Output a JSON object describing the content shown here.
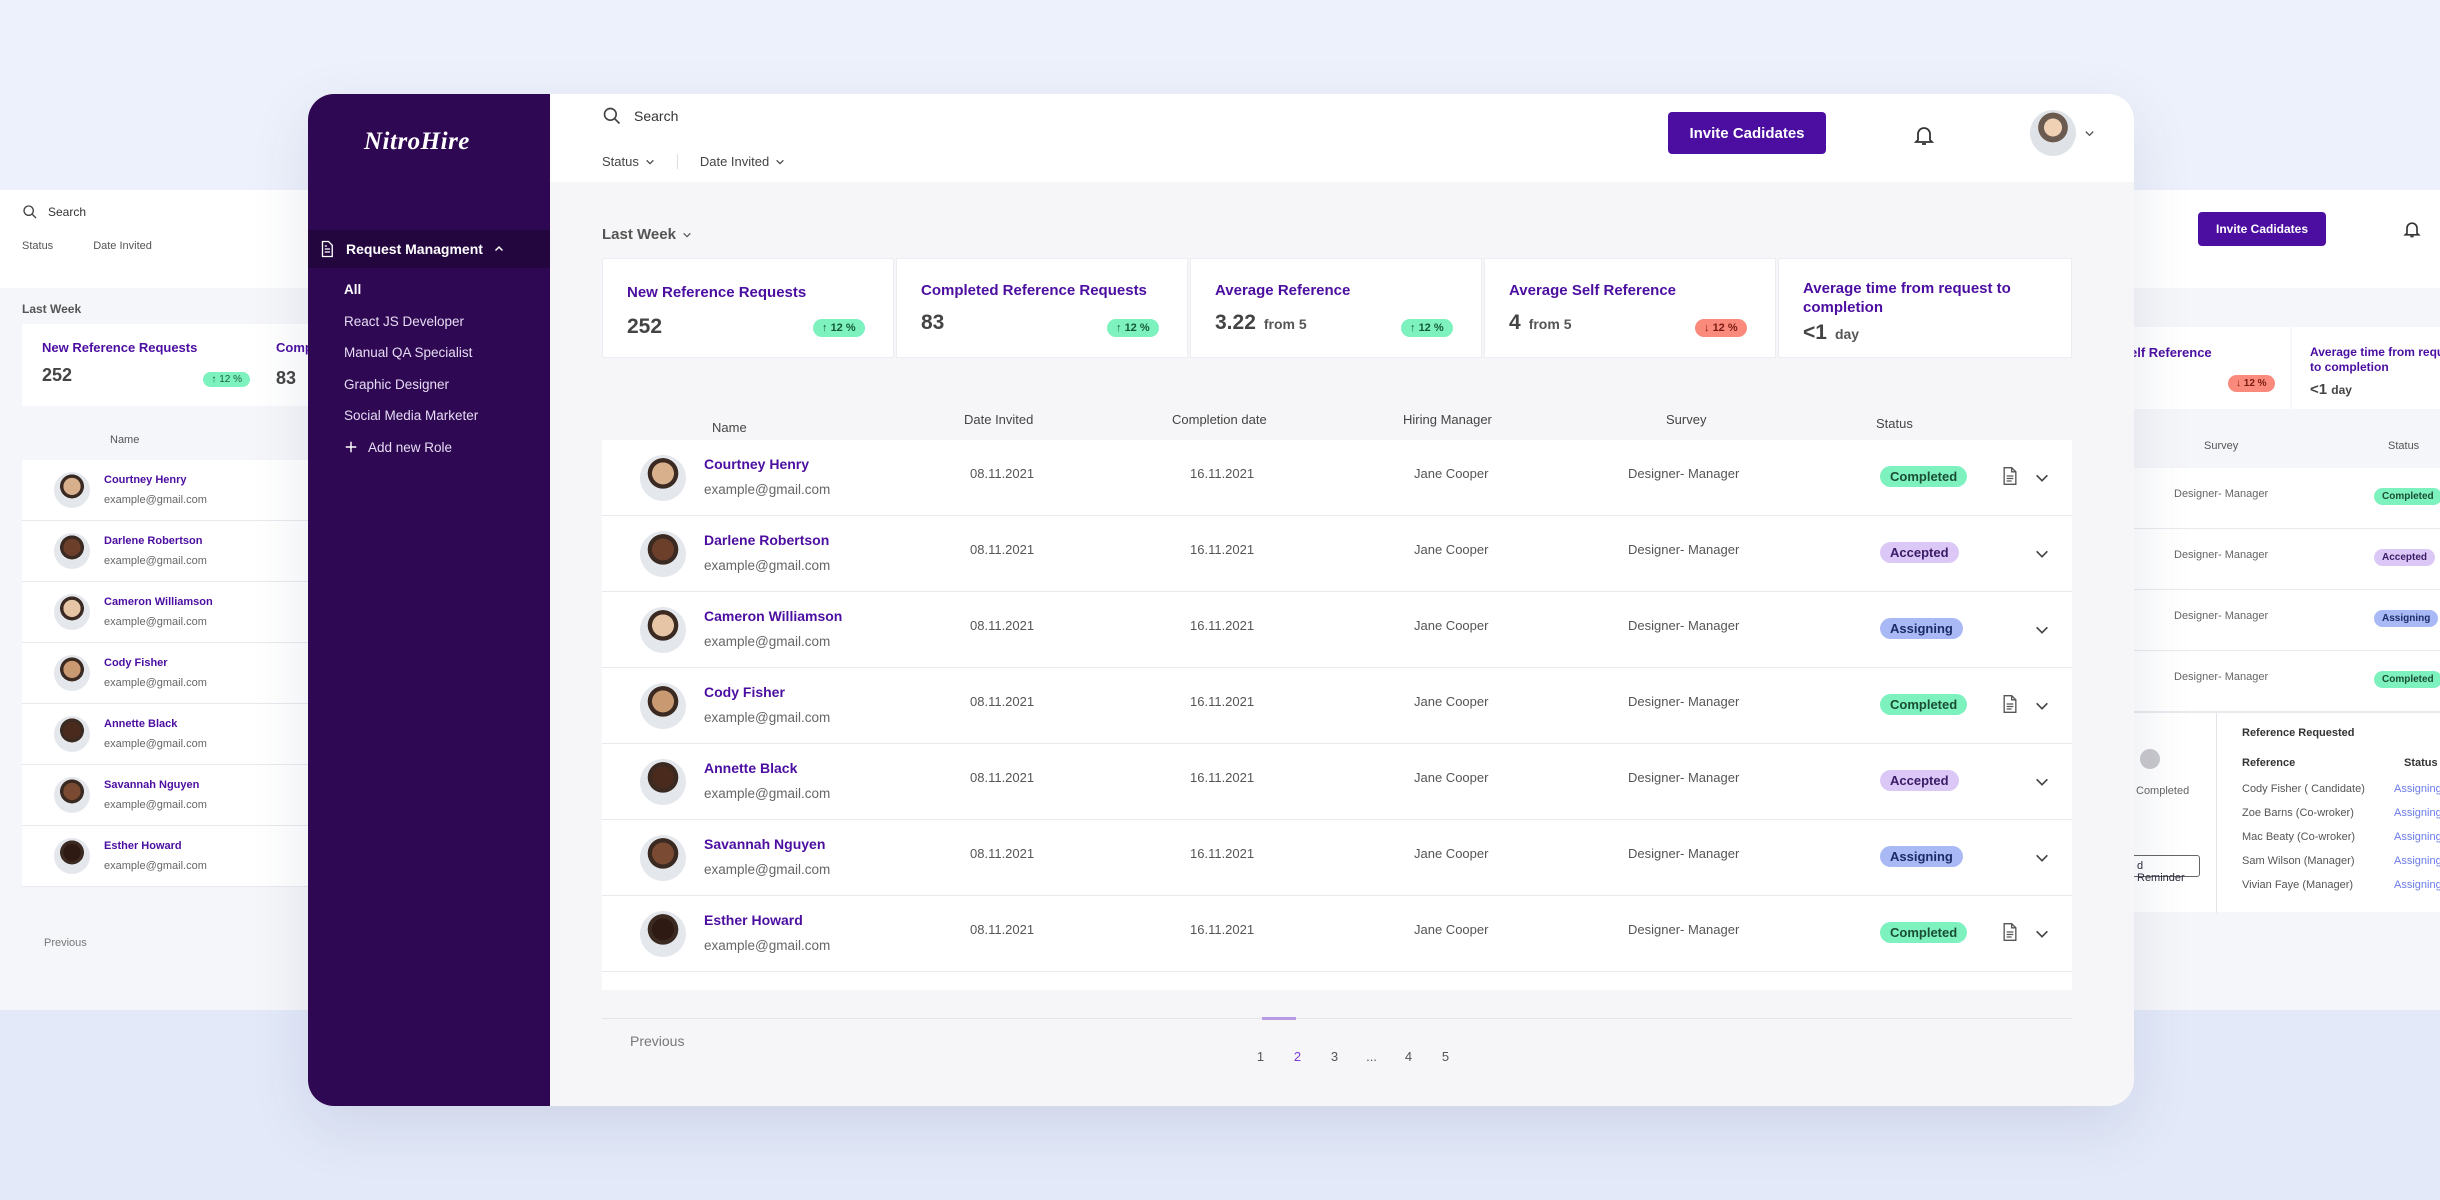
{
  "app": {
    "brand": "NitroHire"
  },
  "sidebar": {
    "section_label": "Request Managment",
    "items": [
      {
        "label": "All"
      },
      {
        "label": "React JS Developer"
      },
      {
        "label": "Manual QA Specialist"
      },
      {
        "label": "Graphic Designer"
      },
      {
        "label": "Social Media Marketer"
      }
    ],
    "add_label": "Add new Role"
  },
  "topbar": {
    "search_placeholder": "Search",
    "filters": [
      "Status",
      "Date Invited"
    ],
    "invite_label": "Invite Cadidates"
  },
  "period_label": "Last Week",
  "stats": [
    {
      "title": "New Reference Requests",
      "value": "252",
      "suffix": "",
      "delta": "12 %",
      "trend": "up"
    },
    {
      "title": "Completed Reference Requests",
      "value": "83",
      "suffix": "",
      "delta": "12 %",
      "trend": "up"
    },
    {
      "title": "Average Reference",
      "value": "3.22",
      "suffix": "from 5",
      "delta": "12 %",
      "trend": "up"
    },
    {
      "title": "Average Self Reference",
      "value": "4",
      "suffix": "from 5",
      "delta": "12 %",
      "trend": "down"
    },
    {
      "title": "Average time from request to completion",
      "value": "<1",
      "suffix": "day",
      "delta": "",
      "trend": ""
    }
  ],
  "table": {
    "headers": {
      "name": "Name",
      "date_invited": "Date Invited",
      "completion": "Completion date",
      "manager": "Hiring Manager",
      "survey": "Survey",
      "status": "Status"
    },
    "rows": [
      {
        "name": "Courtney Henry",
        "email": "example@gmail.com",
        "date_invited": "08.11.2021",
        "completion": "16.11.2021",
        "manager": "Jane Cooper",
        "survey": "Designer- Manager",
        "status": "Completed",
        "has_doc": true
      },
      {
        "name": "Darlene Robertson",
        "email": "example@gmail.com",
        "date_invited": "08.11.2021",
        "completion": "16.11.2021",
        "manager": "Jane Cooper",
        "survey": "Designer- Manager",
        "status": "Accepted",
        "has_doc": false
      },
      {
        "name": "Cameron Williamson",
        "email": "example@gmail.com",
        "date_invited": "08.11.2021",
        "completion": "16.11.2021",
        "manager": "Jane Cooper",
        "survey": "Designer- Manager",
        "status": "Assigning",
        "has_doc": false
      },
      {
        "name": "Cody Fisher",
        "email": "example@gmail.com",
        "date_invited": "08.11.2021",
        "completion": "16.11.2021",
        "manager": "Jane Cooper",
        "survey": "Designer- Manager",
        "status": "Completed",
        "has_doc": true
      },
      {
        "name": "Annette Black",
        "email": "example@gmail.com",
        "date_invited": "08.11.2021",
        "completion": "16.11.2021",
        "manager": "Jane Cooper",
        "survey": "Designer- Manager",
        "status": "Accepted",
        "has_doc": false
      },
      {
        "name": "Savannah Nguyen",
        "email": "example@gmail.com",
        "date_invited": "08.11.2021",
        "completion": "16.11.2021",
        "manager": "Jane Cooper",
        "survey": "Designer- Manager",
        "status": "Assigning",
        "has_doc": false
      },
      {
        "name": "Esther Howard",
        "email": "example@gmail.com",
        "date_invited": "08.11.2021",
        "completion": "16.11.2021",
        "manager": "Jane Cooper",
        "survey": "Designer- Manager",
        "status": "Completed",
        "has_doc": true
      }
    ]
  },
  "pagination": {
    "prev_label": "Previous",
    "pages": [
      "1",
      "2",
      "3",
      "...",
      "4",
      "5"
    ],
    "current": "2"
  },
  "ghost_left": {
    "search_placeholder": "Search",
    "filters": [
      "Status",
      "Date Invited"
    ],
    "period_label": "Last Week",
    "card_title": "New Reference Requests",
    "card_title_partial": "Comp",
    "card_value": "252",
    "card_value_2": "83",
    "card_delta": "12 %",
    "name_header": "Name",
    "rows": [
      {
        "name": "Courtney Henry",
        "email": "example@gmail.com"
      },
      {
        "name": "Darlene Robertson",
        "email": "example@gmail.com"
      },
      {
        "name": "Cameron Williamson",
        "email": "example@gmail.com"
      },
      {
        "name": "Cody Fisher",
        "email": "example@gmail.com"
      },
      {
        "name": "Annette Black",
        "email": "example@gmail.com"
      },
      {
        "name": "Savannah Nguyen",
        "email": "example@gmail.com"
      },
      {
        "name": "Esther Howard",
        "email": "example@gmail.com"
      }
    ],
    "prev_label": "Previous"
  },
  "ghost_right": {
    "invite_label": "Invite Cadidates",
    "card_title_1": "elf Reference",
    "card_delta": "12 %",
    "card_title_2": "Average time from request to completion",
    "card_value_2": "<1",
    "card_suffix_2": "day",
    "survey_header": "Survey",
    "status_header": "Status",
    "rows": [
      {
        "survey": "Designer- Manager",
        "status": "Completed"
      },
      {
        "survey": "Designer- Manager",
        "status": "Accepted"
      },
      {
        "survey": "Designer- Manager",
        "status": "Assigning"
      },
      {
        "survey": "Designer- Manager",
        "status": "Completed"
      }
    ],
    "completed_label": "Completed",
    "reminder_label": "d Reminder",
    "ref_title": "Reference Requested",
    "ref_header": "Reference",
    "ref_status_header": "Status",
    "references": [
      {
        "name": "Cody Fisher ( Candidate)",
        "status": "Assigning"
      },
      {
        "name": "Zoe Barns (Co-wroker)",
        "status": "Assigning"
      },
      {
        "name": "Mac Beaty (Co-wroker)",
        "status": "Assigning"
      },
      {
        "name": "Sam Wilson (Manager)",
        "status": "Assigning"
      },
      {
        "name": "Vivian Faye (Manager)",
        "status": "Assigning"
      }
    ]
  },
  "colors": {
    "brand": "#4b0ea0",
    "sidebar": "#2e0852",
    "completed": "#7df2bf",
    "accepted": "#dcc8f6",
    "assigning": "#a9b9f5",
    "down": "#fa8a7c"
  }
}
